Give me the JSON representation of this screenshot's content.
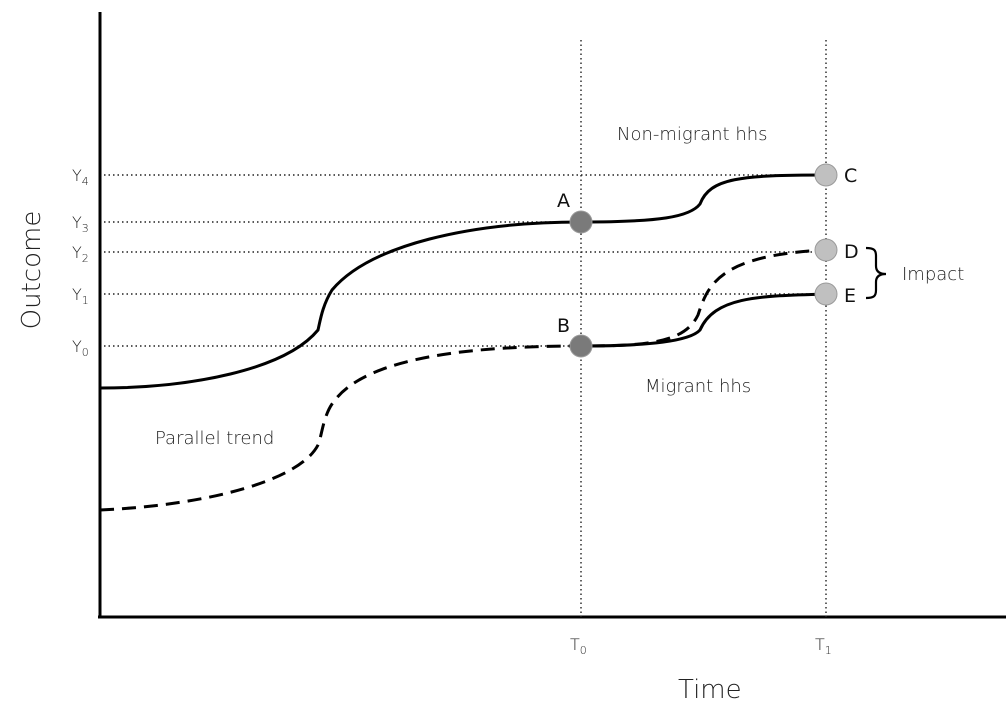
{
  "axes": {
    "x_title": "Time",
    "y_title": "Outcome",
    "x_ticks": [
      {
        "base": "T",
        "sub": "0"
      },
      {
        "base": "T",
        "sub": "1"
      }
    ],
    "y_ticks": [
      {
        "base": "Y",
        "sub": "4"
      },
      {
        "base": "Y",
        "sub": "3"
      },
      {
        "base": "Y",
        "sub": "2"
      },
      {
        "base": "Y",
        "sub": "1"
      },
      {
        "base": "Y",
        "sub": "0"
      }
    ]
  },
  "points": {
    "a": {
      "label": "A",
      "fill": "#7a7a7a"
    },
    "b": {
      "label": "B",
      "fill": "#7a7a7a"
    },
    "c": {
      "label": "C",
      "fill": "#c0c0c0"
    },
    "d": {
      "label": "D",
      "fill": "#c0c0c0"
    },
    "e": {
      "label": "E",
      "fill": "#c0c0c0"
    }
  },
  "labels": {
    "non_migrant": "Non-migrant hhs",
    "migrant": "Migrant hhs",
    "parallel_trend": "Parallel trend",
    "impact": "Impact"
  },
  "colors": {
    "line": "#000000",
    "observed_point": "#7a7a7a",
    "counterfactual_point": "#c0c0c0"
  }
}
